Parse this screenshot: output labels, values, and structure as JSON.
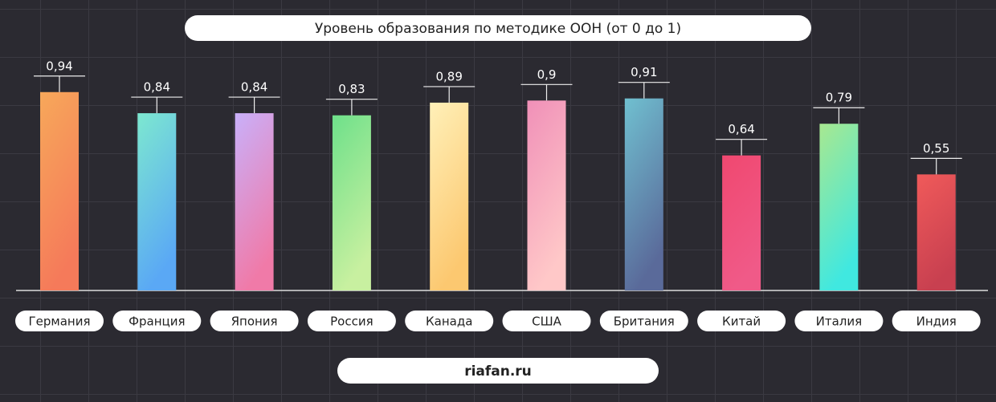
{
  "chart_data": {
    "type": "bar",
    "title": "Уровень образования по методике ООН (от 0 до 1)",
    "source": "riafan.ru",
    "categories": [
      "Германия",
      "Франция",
      "Япония",
      "Россия",
      "Канада",
      "США",
      "Британия",
      "Китай",
      "Италия",
      "Индия"
    ],
    "values": [
      0.94,
      0.84,
      0.84,
      0.83,
      0.89,
      0.9,
      0.91,
      0.64,
      0.79,
      0.55
    ],
    "value_labels": [
      "0,94",
      "0,84",
      "0,84",
      "0,83",
      "0,89",
      "0,9",
      "0,91",
      "0,64",
      "0,79",
      "0,55"
    ],
    "gradients": [
      [
        "#f7a85a",
        "#f57a5a"
      ],
      [
        "#7de8d0",
        "#5aa8f5"
      ],
      [
        "#c9b0fa",
        "#f07aa8"
      ],
      [
        "#6ee08a",
        "#c8f0a0"
      ],
      [
        "#fff0b8",
        "#fcc870"
      ],
      [
        "#f090b8",
        "#ffc8c8"
      ],
      [
        "#70c0d0",
        "#5a6a9a"
      ],
      [
        "#f04870",
        "#f05a88"
      ],
      [
        "#a8e890",
        "#40e8e0"
      ],
      [
        "#f05a5a",
        "#c84050"
      ]
    ],
    "ylim": [
      0,
      1
    ]
  }
}
